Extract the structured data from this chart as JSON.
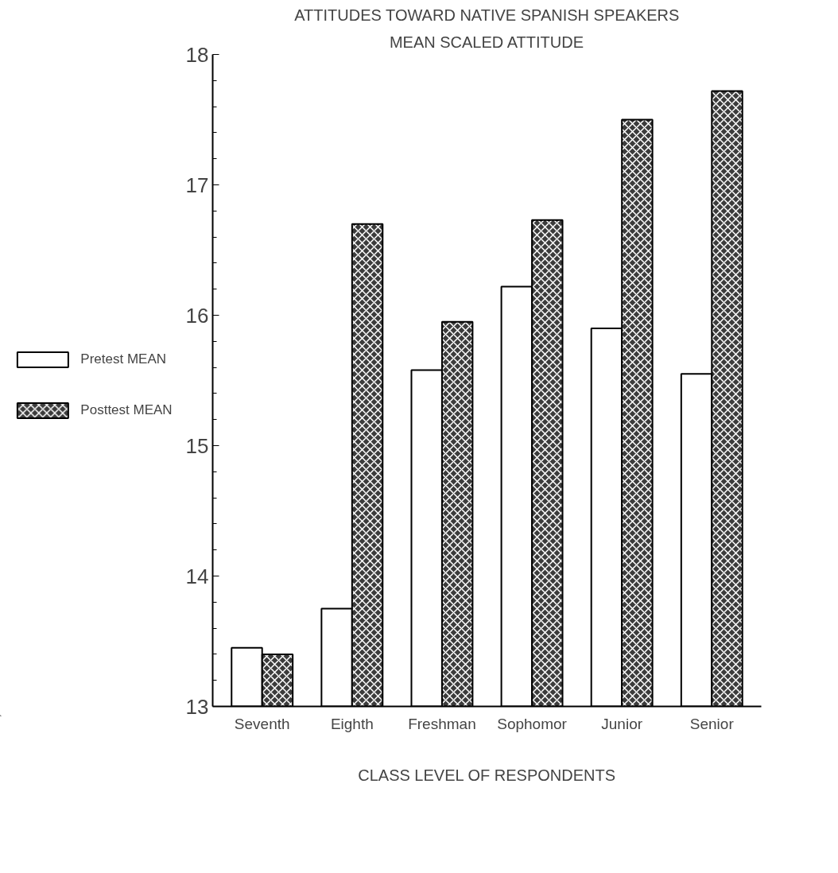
{
  "chart_data": {
    "type": "bar",
    "title": "ATTITUDES TOWARD NATIVE SPANISH SPEAKERS",
    "subtitle": "MEAN SCALED ATTITUDE",
    "xlabel": "CLASS LEVEL OF RESPONDENTS",
    "categories": [
      "Seventh",
      "Eighth",
      "Freshman",
      "Sophomor",
      "Junior",
      "Senior"
    ],
    "series": [
      {
        "name": "Pretest MEAN",
        "color": "#ffffff",
        "values": [
          13.45,
          13.75,
          15.58,
          16.22,
          15.9,
          15.55
        ]
      },
      {
        "name": "Posttest MEAN",
        "color": "#3c3c3c",
        "values": [
          13.4,
          16.7,
          15.95,
          16.73,
          17.5,
          17.72
        ]
      }
    ],
    "ylim": [
      13,
      18
    ],
    "yticks": [
      13,
      14,
      15,
      16,
      17,
      18
    ],
    "legend": "left"
  }
}
